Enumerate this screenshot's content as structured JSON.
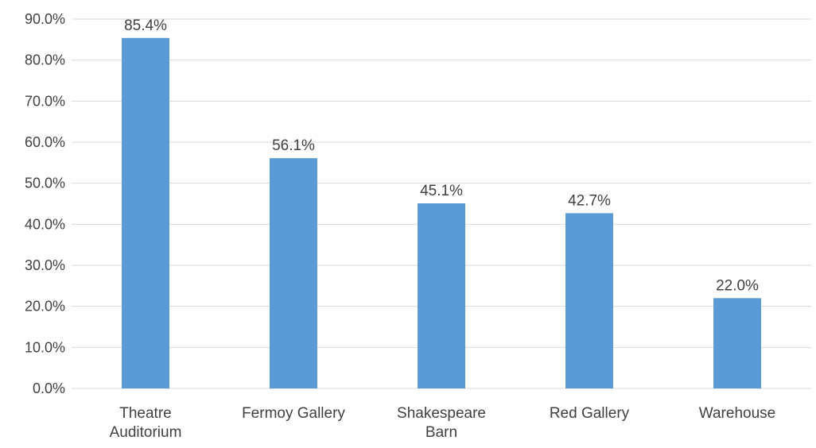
{
  "chart_data": {
    "type": "bar",
    "categories": [
      [
        "Theatre",
        "Auditorium"
      ],
      [
        "Fermoy Gallery"
      ],
      [
        "Shakespeare",
        "Barn"
      ],
      [
        "Red Gallery"
      ],
      [
        "Warehouse"
      ]
    ],
    "values": [
      85.4,
      56.1,
      45.1,
      42.7,
      22.0
    ],
    "data_labels": [
      "85.4%",
      "56.1%",
      "45.1%",
      "42.7%",
      "22.0%"
    ],
    "y_ticks": [
      0,
      10,
      20,
      30,
      40,
      50,
      60,
      70,
      80,
      90
    ],
    "y_tick_labels": [
      "0.0%",
      "10.0%",
      "20.0%",
      "30.0%",
      "40.0%",
      "50.0%",
      "60.0%",
      "70.0%",
      "80.0%",
      "90.0%"
    ],
    "ylim": [
      0,
      90
    ],
    "grid": true,
    "legend": "none",
    "title": "",
    "xlabel": "",
    "ylabel": "",
    "colors": {
      "bar": "#5B9BD5",
      "grid": "#D9D9D9",
      "text": "#404040"
    }
  }
}
